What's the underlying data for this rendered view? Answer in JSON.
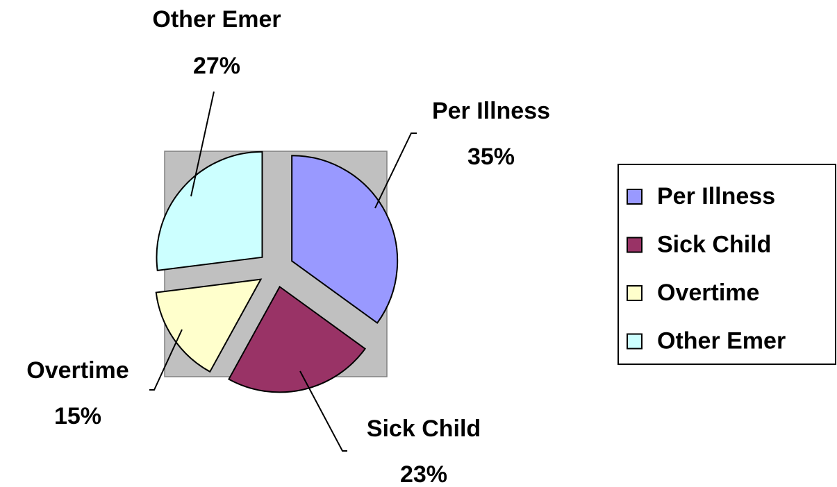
{
  "chart_data": {
    "type": "pie",
    "categories": [
      "Per Illness",
      "Sick Child",
      "Overtime",
      "Other Emer"
    ],
    "values": [
      35,
      23,
      15,
      27
    ],
    "value_labels": [
      "35%",
      "23%",
      "15%",
      "27%"
    ],
    "colors": [
      "#9999ff",
      "#993366",
      "#ffffcc",
      "#ccffff"
    ],
    "exploded": true,
    "legend": "right"
  }
}
